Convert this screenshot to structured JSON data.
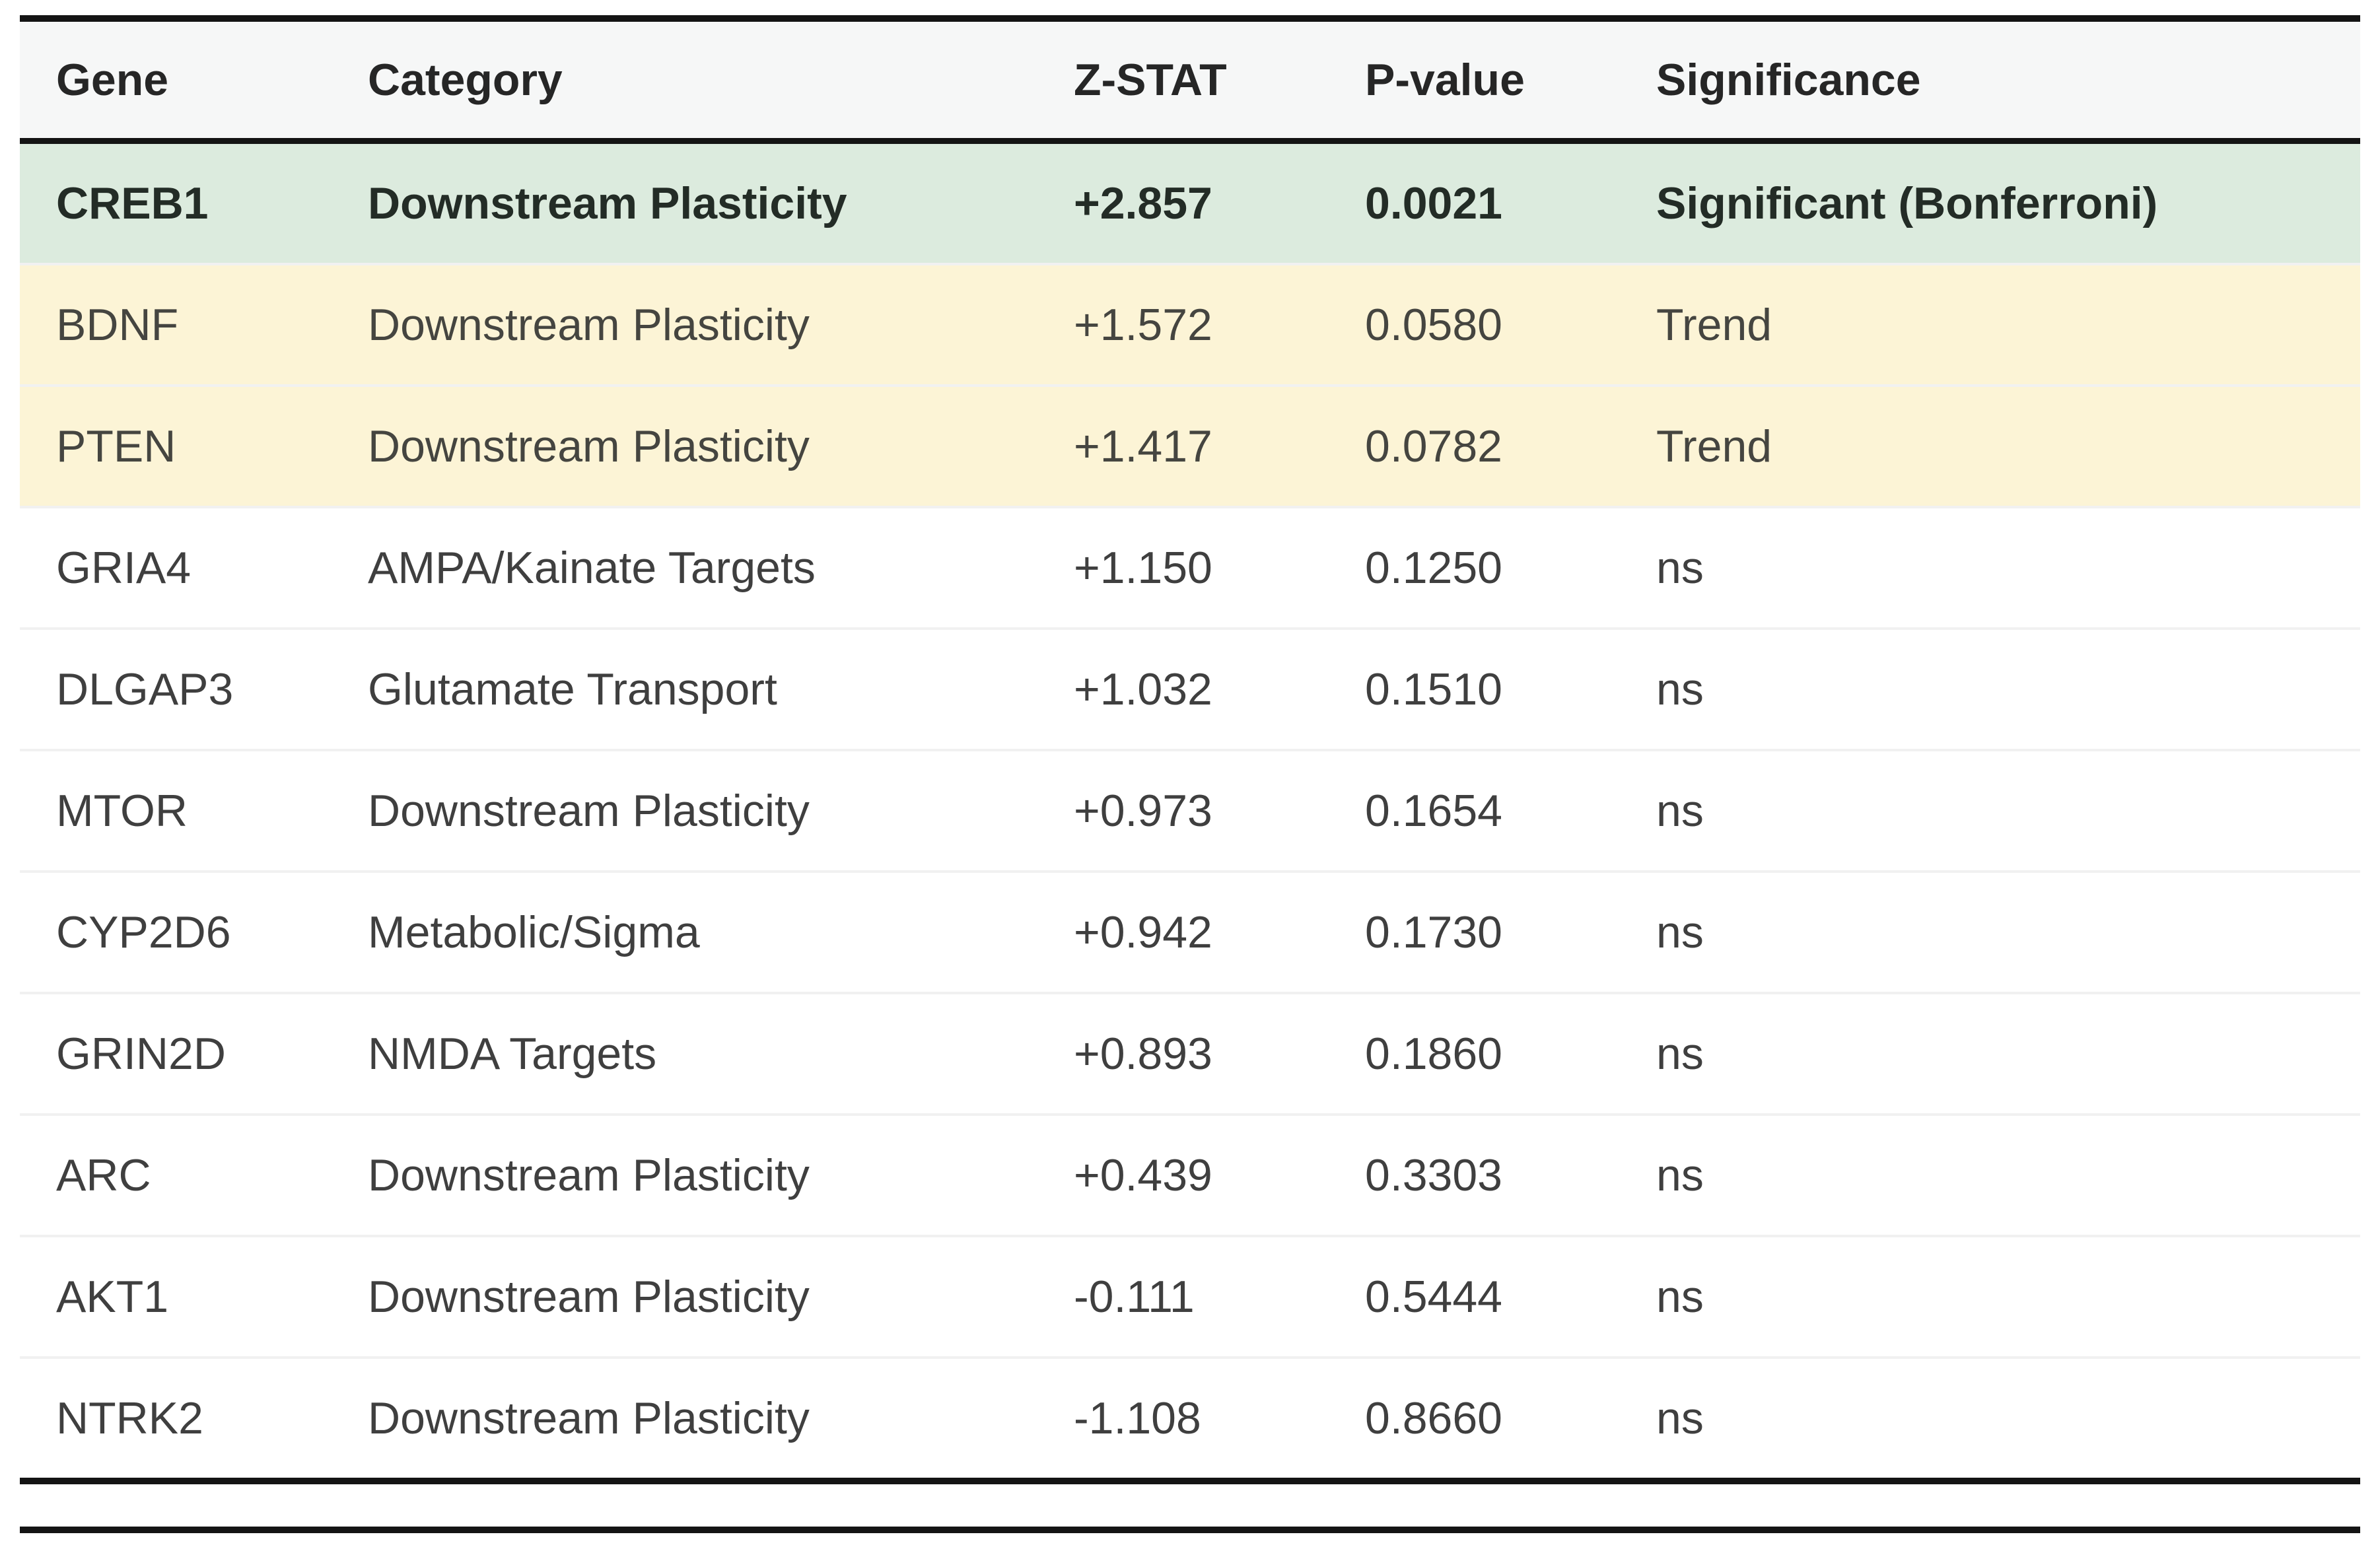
{
  "chart_data": {
    "type": "table",
    "title": "",
    "columns": [
      "Gene",
      "Category",
      "Z-STAT",
      "P-value",
      "Significance"
    ],
    "rows": [
      {
        "gene": "CREB1",
        "category": "Downstream Plasticity",
        "z_stat": "+2.857",
        "p_value": "0.0021",
        "significance": "Significant (Bonferroni)",
        "highlight": "significant"
      },
      {
        "gene": "BDNF",
        "category": "Downstream Plasticity",
        "z_stat": "+1.572",
        "p_value": "0.0580",
        "significance": "Trend",
        "highlight": "trend"
      },
      {
        "gene": "PTEN",
        "category": "Downstream Plasticity",
        "z_stat": "+1.417",
        "p_value": "0.0782",
        "significance": "Trend",
        "highlight": "trend"
      },
      {
        "gene": "GRIA4",
        "category": "AMPA/Kainate Targets",
        "z_stat": "+1.150",
        "p_value": "0.1250",
        "significance": "ns",
        "highlight": "none"
      },
      {
        "gene": "DLGAP3",
        "category": "Glutamate Transport",
        "z_stat": "+1.032",
        "p_value": "0.1510",
        "significance": "ns",
        "highlight": "none"
      },
      {
        "gene": "MTOR",
        "category": "Downstream Plasticity",
        "z_stat": "+0.973",
        "p_value": "0.1654",
        "significance": "ns",
        "highlight": "none"
      },
      {
        "gene": "CYP2D6",
        "category": "Metabolic/Sigma",
        "z_stat": "+0.942",
        "p_value": "0.1730",
        "significance": "ns",
        "highlight": "none"
      },
      {
        "gene": "GRIN2D",
        "category": "NMDA Targets",
        "z_stat": "+0.893",
        "p_value": "0.1860",
        "significance": "ns",
        "highlight": "none"
      },
      {
        "gene": "ARC",
        "category": "Downstream Plasticity",
        "z_stat": "+0.439",
        "p_value": "0.3303",
        "significance": "ns",
        "highlight": "none"
      },
      {
        "gene": "AKT1",
        "category": "Downstream Plasticity",
        "z_stat": "-0.111",
        "p_value": "0.5444",
        "significance": "ns",
        "highlight": "none"
      },
      {
        "gene": "NTRK2",
        "category": "Downstream Plasticity",
        "z_stat": "-1.108",
        "p_value": "0.8660",
        "significance": "ns",
        "highlight": "none"
      }
    ],
    "layout_hints": {
      "header_band": true,
      "booktabs_rules": "thick top rule, thick mid rule under header, double thick rule at bottom",
      "row_highlighting": {
        "significant": "green + bold",
        "trend": "pale yellow",
        "none": "white"
      }
    }
  },
  "colors": {
    "significant_row_bg": "#dcebde",
    "trend_row_bg": "#fcf4d6",
    "header_bg": "#f6f7f7",
    "rule": "#141414",
    "text": "#3f3f3f",
    "bold_text": "#262626"
  }
}
